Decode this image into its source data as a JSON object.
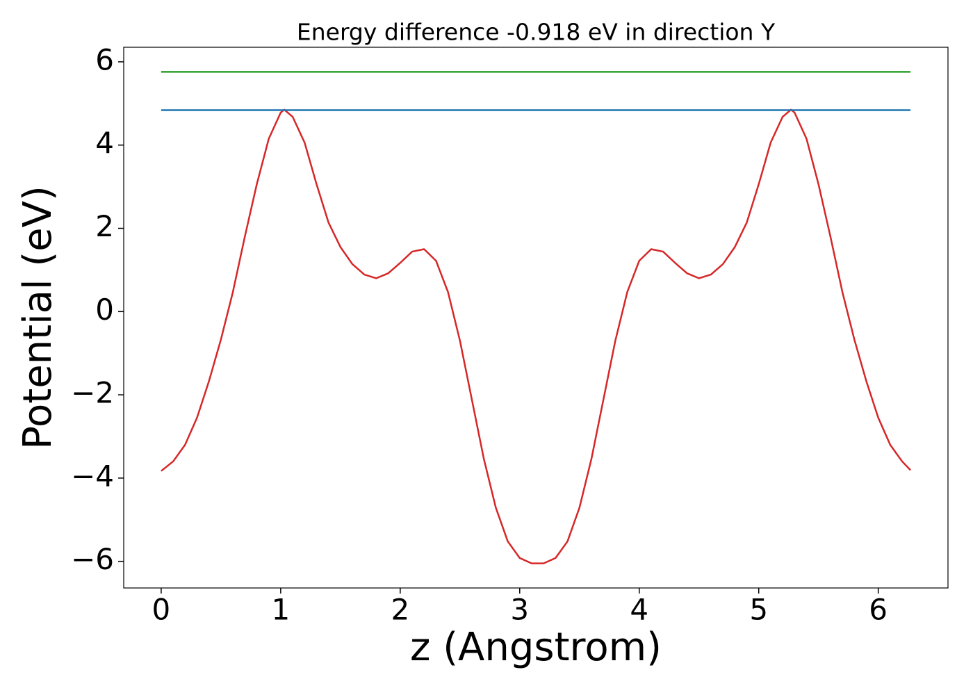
{
  "chart_data": {
    "type": "line",
    "title": "Energy difference -0.918 eV in direction Y",
    "xlabel": "z (Angstrom)",
    "ylabel": "Potential (eV)",
    "xlim": [
      -0.3135,
      6.5835
    ],
    "ylim": [
      -6.64,
      6.35
    ],
    "xticks": [
      0,
      1,
      2,
      3,
      4,
      5,
      6
    ],
    "yticks": [
      {
        "value": -6,
        "label": "−6"
      },
      {
        "value": -4,
        "label": "−4"
      },
      {
        "value": -2,
        "label": "−2"
      },
      0,
      2,
      4,
      6
    ],
    "series": [
      {
        "color": "#d62728",
        "x": [
          0,
          0.1,
          0.2,
          0.3,
          0.4,
          0.5,
          0.6,
          0.7,
          0.8,
          0.9,
          1.0,
          1.03,
          1.1,
          1.2,
          1.3,
          1.4,
          1.5,
          1.6,
          1.7,
          1.8,
          1.9,
          2.0,
          2.1,
          2.2,
          2.3,
          2.4,
          2.5,
          2.6,
          2.7,
          2.8,
          2.9,
          3.0,
          3.1,
          3.2,
          3.3,
          3.4,
          3.5,
          3.6,
          3.7,
          3.8,
          3.9,
          4.0,
          4.1,
          4.2,
          4.3,
          4.4,
          4.5,
          4.6,
          4.7,
          4.8,
          4.9,
          5.0,
          5.1,
          5.2,
          5.27,
          5.3,
          5.4,
          5.5,
          5.6,
          5.7,
          5.8,
          5.9,
          6.0,
          6.1,
          6.2,
          6.27
        ],
        "values": [
          -3.83,
          -3.6,
          -3.2,
          -2.55,
          -1.67,
          -0.67,
          0.47,
          1.8,
          3.06,
          4.15,
          4.78,
          4.85,
          4.68,
          4.06,
          3.06,
          2.14,
          1.55,
          1.14,
          0.89,
          0.8,
          0.92,
          1.17,
          1.44,
          1.5,
          1.22,
          0.47,
          -0.7,
          -2.12,
          -3.54,
          -4.71,
          -5.52,
          -5.92,
          -6.05,
          -6.05,
          -5.92,
          -5.52,
          -4.71,
          -3.54,
          -2.12,
          -0.7,
          0.47,
          1.22,
          1.5,
          1.44,
          1.17,
          0.92,
          0.8,
          0.89,
          1.14,
          1.55,
          2.14,
          3.06,
          4.06,
          4.68,
          4.85,
          4.78,
          4.15,
          3.06,
          1.8,
          0.47,
          -0.67,
          -1.67,
          -2.55,
          -3.2,
          -3.6,
          -3.81
        ]
      },
      {
        "color": "#1f77b4",
        "x": [
          0,
          6.27
        ],
        "values": [
          4.84,
          4.84
        ]
      },
      {
        "color": "#2ca02c",
        "x": [
          0,
          6.27
        ],
        "values": [
          5.76,
          5.76
        ]
      }
    ]
  }
}
